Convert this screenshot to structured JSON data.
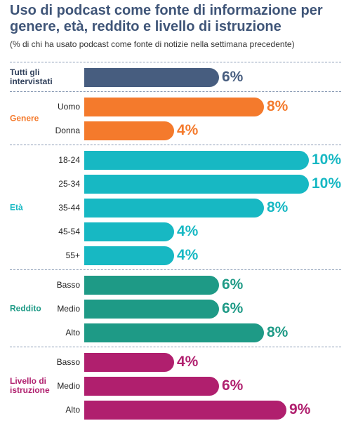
{
  "chart_data": {
    "type": "bar",
    "title": "Uso di podcast come fonte di informazione per genere, età, reddito e livello di istruzione",
    "subtitle": "(% di chi ha usato podcast come fonte di notizie nella settimana precedente)",
    "groups": [
      {
        "name": "Tutti gli intervistati",
        "color": "#475d7f",
        "label_color": "#2f3f5a",
        "categories": [
          null
        ],
        "values": [
          6
        ],
        "value_labels": [
          "6%"
        ]
      },
      {
        "name": "Genere",
        "color": "#f47a2c",
        "label_color": "#f47a2c",
        "categories": [
          "Uomo",
          "Donna"
        ],
        "values": [
          8,
          4
        ],
        "value_labels": [
          "8%",
          "4%"
        ]
      },
      {
        "name": "Età",
        "color": "#17b8c3",
        "label_color": "#17b8c3",
        "categories": [
          "18-24",
          "25-34",
          "35-44",
          "45-54",
          "55+"
        ],
        "values": [
          10,
          10,
          8,
          4,
          4
        ],
        "value_labels": [
          "10%",
          "10%",
          "8%",
          "4%",
          "4%"
        ]
      },
      {
        "name": "Reddito",
        "color": "#1e9a86",
        "label_color": "#1e9a86",
        "categories": [
          "Basso",
          "Medio",
          "Alto"
        ],
        "values": [
          6,
          6,
          8
        ],
        "value_labels": [
          "6%",
          "6%",
          "8%"
        ]
      },
      {
        "name": "Livello di istruzione",
        "color": "#b01f6e",
        "label_color": "#b01f6e",
        "categories": [
          "Basso",
          "Medio",
          "Alto"
        ],
        "values": [
          4,
          6,
          9
        ],
        "value_labels": [
          "4%",
          "6%",
          "9%"
        ]
      }
    ]
  }
}
